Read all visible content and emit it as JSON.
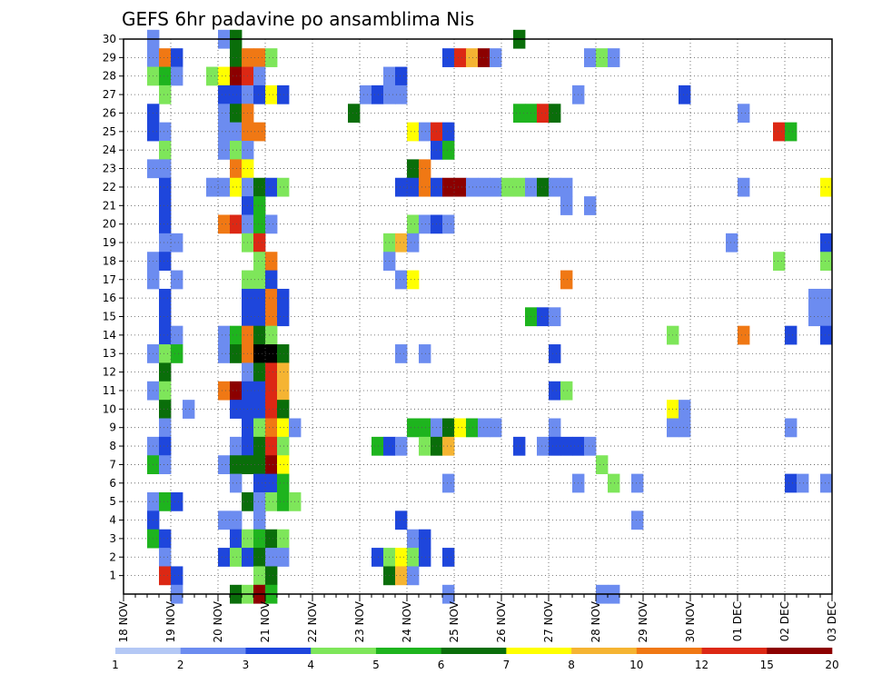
{
  "chart_data": {
    "type": "heatmap",
    "title": "GEFS 6hr padavine po ansamblima Nis",
    "xlabel": "",
    "ylabel": "",
    "x_tick_labels": [
      "18 NOV",
      "19 NOV",
      "20 NOV",
      "21 NOV",
      "22 NOV",
      "23 NOV",
      "24 NOV",
      "25 NOV",
      "26 NOV",
      "27 NOV",
      "28 NOV",
      "29 NOV",
      "30 NOV",
      "01 DEC",
      "02 DEC",
      "03 DEC"
    ],
    "y_tick_labels": [
      "1",
      "2",
      "3",
      "4",
      "5",
      "6",
      "7",
      "8",
      "9",
      "10",
      "11",
      "12",
      "13",
      "14",
      "15",
      "16",
      "17",
      "18",
      "19",
      "20",
      "21",
      "22",
      "23",
      "24",
      "25",
      "26",
      "27",
      "28",
      "29",
      "30"
    ],
    "y_range": [
      0,
      30
    ],
    "x_steps_per_day": 4,
    "x_steps_total": 60,
    "grid": true,
    "colorbar": {
      "labels": [
        "1",
        "2",
        "3",
        "4",
        "5",
        "6",
        "7",
        "8",
        "10",
        "12",
        "15",
        "20"
      ],
      "colors": [
        "#b4c8f5",
        "#6c8cf0",
        "#1e46dc",
        "#7ee65a",
        "#1eb41e",
        "#0a6e0a",
        "#ffff00",
        "#f5b432",
        "#f07814",
        "#dc2814",
        "#8c0000"
      ]
    },
    "cells": [
      [
        30,
        2,
        1
      ],
      [
        30,
        8,
        1
      ],
      [
        30,
        9,
        5
      ],
      [
        30,
        33,
        5
      ],
      [
        29,
        2,
        1
      ],
      [
        29,
        3,
        8
      ],
      [
        29,
        4,
        2
      ],
      [
        29,
        9,
        5
      ],
      [
        29,
        10,
        8
      ],
      [
        29,
        11,
        8
      ],
      [
        29,
        12,
        3
      ],
      [
        29,
        27,
        2
      ],
      [
        29,
        28,
        9
      ],
      [
        29,
        29,
        7
      ],
      [
        29,
        30,
        10
      ],
      [
        29,
        31,
        1
      ],
      [
        29,
        39,
        1
      ],
      [
        29,
        40,
        3
      ],
      [
        29,
        41,
        1
      ],
      [
        28,
        2,
        3
      ],
      [
        28,
        3,
        4
      ],
      [
        28,
        4,
        1
      ],
      [
        28,
        7,
        3
      ],
      [
        28,
        8,
        6
      ],
      [
        28,
        9,
        10
      ],
      [
        28,
        10,
        9
      ],
      [
        28,
        11,
        1
      ],
      [
        28,
        22,
        1
      ],
      [
        28,
        23,
        2
      ],
      [
        27,
        3,
        3
      ],
      [
        27,
        8,
        2
      ],
      [
        27,
        9,
        2
      ],
      [
        27,
        10,
        1
      ],
      [
        27,
        11,
        2
      ],
      [
        27,
        12,
        6
      ],
      [
        27,
        13,
        2
      ],
      [
        27,
        20,
        1
      ],
      [
        27,
        21,
        2
      ],
      [
        27,
        22,
        1
      ],
      [
        27,
        23,
        1
      ],
      [
        27,
        38,
        1
      ],
      [
        27,
        47,
        2
      ],
      [
        26,
        2,
        2
      ],
      [
        26,
        8,
        1
      ],
      [
        26,
        9,
        5
      ],
      [
        26,
        10,
        8
      ],
      [
        26,
        19,
        5
      ],
      [
        26,
        33,
        4
      ],
      [
        26,
        34,
        4
      ],
      [
        26,
        35,
        9
      ],
      [
        26,
        36,
        5
      ],
      [
        26,
        52,
        1
      ],
      [
        25,
        2,
        2
      ],
      [
        25,
        3,
        1
      ],
      [
        25,
        8,
        1
      ],
      [
        25,
        9,
        1
      ],
      [
        25,
        10,
        8
      ],
      [
        25,
        11,
        8
      ],
      [
        25,
        24,
        6
      ],
      [
        25,
        25,
        1
      ],
      [
        25,
        26,
        9
      ],
      [
        25,
        27,
        2
      ],
      [
        25,
        55,
        9
      ],
      [
        25,
        56,
        4
      ],
      [
        24,
        3,
        3
      ],
      [
        24,
        8,
        1
      ],
      [
        24,
        9,
        3
      ],
      [
        24,
        10,
        1
      ],
      [
        24,
        26,
        2
      ],
      [
        24,
        27,
        4
      ],
      [
        23,
        2,
        1
      ],
      [
        23,
        3,
        1
      ],
      [
        23,
        9,
        8
      ],
      [
        23,
        10,
        6
      ],
      [
        23,
        24,
        5
      ],
      [
        23,
        25,
        8
      ],
      [
        22,
        3,
        2
      ],
      [
        22,
        7,
        1
      ],
      [
        22,
        8,
        1
      ],
      [
        22,
        9,
        6
      ],
      [
        22,
        10,
        1
      ],
      [
        22,
        11,
        5
      ],
      [
        22,
        12,
        2
      ],
      [
        22,
        13,
        3
      ],
      [
        22,
        23,
        2
      ],
      [
        22,
        24,
        2
      ],
      [
        22,
        25,
        8
      ],
      [
        22,
        26,
        2
      ],
      [
        22,
        27,
        10
      ],
      [
        22,
        28,
        10
      ],
      [
        22,
        29,
        1
      ],
      [
        22,
        30,
        1
      ],
      [
        22,
        31,
        1
      ],
      [
        22,
        32,
        3
      ],
      [
        22,
        33,
        3
      ],
      [
        22,
        34,
        1
      ],
      [
        22,
        35,
        5
      ],
      [
        22,
        36,
        1
      ],
      [
        22,
        37,
        1
      ],
      [
        22,
        52,
        1
      ],
      [
        22,
        59,
        6
      ],
      [
        21,
        3,
        2
      ],
      [
        21,
        10,
        2
      ],
      [
        21,
        11,
        4
      ],
      [
        21,
        37,
        1
      ],
      [
        21,
        39,
        1
      ],
      [
        20,
        3,
        2
      ],
      [
        20,
        8,
        8
      ],
      [
        20,
        9,
        9
      ],
      [
        20,
        10,
        1
      ],
      [
        20,
        11,
        4
      ],
      [
        20,
        12,
        1
      ],
      [
        20,
        24,
        3
      ],
      [
        20,
        25,
        1
      ],
      [
        20,
        26,
        2
      ],
      [
        20,
        27,
        1
      ],
      [
        19,
        3,
        1
      ],
      [
        19,
        4,
        1
      ],
      [
        19,
        10,
        3
      ],
      [
        19,
        11,
        9
      ],
      [
        19,
        22,
        3
      ],
      [
        19,
        23,
        7
      ],
      [
        19,
        24,
        1
      ],
      [
        19,
        51,
        1
      ],
      [
        19,
        59,
        2
      ],
      [
        18,
        2,
        1
      ],
      [
        18,
        3,
        2
      ],
      [
        18,
        11,
        3
      ],
      [
        18,
        12,
        8
      ],
      [
        18,
        22,
        1
      ],
      [
        18,
        55,
        3
      ],
      [
        18,
        59,
        3
      ],
      [
        17,
        2,
        1
      ],
      [
        17,
        4,
        1
      ],
      [
        17,
        10,
        3
      ],
      [
        17,
        11,
        3
      ],
      [
        17,
        12,
        2
      ],
      [
        17,
        23,
        1
      ],
      [
        17,
        24,
        6
      ],
      [
        17,
        37,
        8
      ],
      [
        16,
        3,
        2
      ],
      [
        16,
        10,
        2
      ],
      [
        16,
        11,
        2
      ],
      [
        16,
        12,
        8
      ],
      [
        16,
        13,
        2
      ],
      [
        16,
        58,
        1
      ],
      [
        16,
        59,
        1
      ],
      [
        15,
        3,
        2
      ],
      [
        15,
        10,
        2
      ],
      [
        15,
        11,
        2
      ],
      [
        15,
        12,
        8
      ],
      [
        15,
        13,
        2
      ],
      [
        15,
        34,
        4
      ],
      [
        15,
        35,
        2
      ],
      [
        15,
        36,
        1
      ],
      [
        15,
        58,
        1
      ],
      [
        15,
        59,
        1
      ],
      [
        14,
        3,
        2
      ],
      [
        14,
        4,
        1
      ],
      [
        14,
        8,
        1
      ],
      [
        14,
        9,
        4
      ],
      [
        14,
        10,
        8
      ],
      [
        14,
        11,
        5
      ],
      [
        14,
        12,
        3
      ],
      [
        14,
        46,
        3
      ],
      [
        14,
        52,
        8
      ],
      [
        14,
        56,
        2
      ],
      [
        14,
        59,
        2
      ],
      [
        13,
        2,
        1
      ],
      [
        13,
        3,
        3
      ],
      [
        13,
        4,
        4
      ],
      [
        13,
        8,
        1
      ],
      [
        13,
        9,
        5
      ],
      [
        13,
        10,
        8
      ],
      [
        13,
        11,
        11
      ],
      [
        13,
        12,
        11
      ],
      [
        13,
        13,
        5
      ],
      [
        13,
        23,
        1
      ],
      [
        13,
        25,
        1
      ],
      [
        13,
        36,
        2
      ],
      [
        12,
        3,
        5
      ],
      [
        12,
        10,
        1
      ],
      [
        12,
        11,
        5
      ],
      [
        12,
        12,
        9
      ],
      [
        12,
        13,
        7
      ],
      [
        11,
        2,
        1
      ],
      [
        11,
        3,
        3
      ],
      [
        11,
        8,
        8
      ],
      [
        11,
        9,
        10
      ],
      [
        11,
        10,
        2
      ],
      [
        11,
        11,
        2
      ],
      [
        11,
        12,
        9
      ],
      [
        11,
        13,
        7
      ],
      [
        11,
        36,
        2
      ],
      [
        11,
        37,
        3
      ],
      [
        10,
        3,
        5
      ],
      [
        10,
        5,
        1
      ],
      [
        10,
        9,
        2
      ],
      [
        10,
        10,
        2
      ],
      [
        10,
        11,
        2
      ],
      [
        10,
        12,
        9
      ],
      [
        10,
        13,
        5
      ],
      [
        10,
        46,
        6
      ],
      [
        10,
        47,
        1
      ],
      [
        9,
        3,
        1
      ],
      [
        9,
        10,
        2
      ],
      [
        9,
        11,
        3
      ],
      [
        9,
        12,
        8
      ],
      [
        9,
        13,
        6
      ],
      [
        9,
        14,
        1
      ],
      [
        9,
        24,
        4
      ],
      [
        9,
        25,
        4
      ],
      [
        9,
        26,
        1
      ],
      [
        9,
        27,
        5
      ],
      [
        9,
        28,
        6
      ],
      [
        9,
        29,
        4
      ],
      [
        9,
        30,
        1
      ],
      [
        9,
        31,
        1
      ],
      [
        9,
        36,
        1
      ],
      [
        9,
        46,
        1
      ],
      [
        9,
        47,
        1
      ],
      [
        9,
        56,
        1
      ],
      [
        8,
        2,
        1
      ],
      [
        8,
        3,
        2
      ],
      [
        8,
        9,
        1
      ],
      [
        8,
        10,
        2
      ],
      [
        8,
        11,
        5
      ],
      [
        8,
        12,
        9
      ],
      [
        8,
        13,
        3
      ],
      [
        8,
        21,
        4
      ],
      [
        8,
        22,
        2
      ],
      [
        8,
        23,
        1
      ],
      [
        8,
        25,
        3
      ],
      [
        8,
        26,
        5
      ],
      [
        8,
        27,
        7
      ],
      [
        8,
        33,
        2
      ],
      [
        8,
        35,
        1
      ],
      [
        8,
        36,
        2
      ],
      [
        8,
        37,
        2
      ],
      [
        8,
        38,
        2
      ],
      [
        8,
        39,
        1
      ],
      [
        7,
        2,
        4
      ],
      [
        7,
        3,
        1
      ],
      [
        7,
        8,
        1
      ],
      [
        7,
        9,
        5
      ],
      [
        7,
        10,
        5
      ],
      [
        7,
        11,
        5
      ],
      [
        7,
        12,
        10
      ],
      [
        7,
        13,
        6
      ],
      [
        7,
        40,
        3
      ],
      [
        6,
        9,
        1
      ],
      [
        6,
        11,
        2
      ],
      [
        6,
        12,
        2
      ],
      [
        6,
        13,
        4
      ],
      [
        6,
        27,
        1
      ],
      [
        6,
        38,
        1
      ],
      [
        6,
        41,
        3
      ],
      [
        6,
        43,
        1
      ],
      [
        6,
        56,
        2
      ],
      [
        6,
        57,
        1
      ],
      [
        6,
        59,
        1
      ],
      [
        5,
        2,
        1
      ],
      [
        5,
        3,
        4
      ],
      [
        5,
        4,
        2
      ],
      [
        5,
        10,
        5
      ],
      [
        5,
        11,
        1
      ],
      [
        5,
        12,
        3
      ],
      [
        5,
        13,
        4
      ],
      [
        5,
        14,
        3
      ],
      [
        4,
        2,
        2
      ],
      [
        4,
        8,
        1
      ],
      [
        4,
        9,
        1
      ],
      [
        4,
        11,
        1
      ],
      [
        4,
        23,
        2
      ],
      [
        4,
        43,
        1
      ],
      [
        3,
        2,
        4
      ],
      [
        3,
        3,
        2
      ],
      [
        3,
        9,
        2
      ],
      [
        3,
        10,
        3
      ],
      [
        3,
        11,
        4
      ],
      [
        3,
        12,
        5
      ],
      [
        3,
        13,
        3
      ],
      [
        3,
        24,
        1
      ],
      [
        3,
        25,
        2
      ],
      [
        2,
        3,
        1
      ],
      [
        2,
        8,
        2
      ],
      [
        2,
        9,
        3
      ],
      [
        2,
        10,
        2
      ],
      [
        2,
        11,
        5
      ],
      [
        2,
        12,
        1
      ],
      [
        2,
        13,
        1
      ],
      [
        2,
        21,
        2
      ],
      [
        2,
        22,
        3
      ],
      [
        2,
        23,
        6
      ],
      [
        2,
        24,
        3
      ],
      [
        2,
        25,
        2
      ],
      [
        2,
        27,
        2
      ],
      [
        1,
        3,
        9
      ],
      [
        1,
        4,
        2
      ],
      [
        1,
        11,
        3
      ],
      [
        1,
        12,
        5
      ],
      [
        1,
        22,
        5
      ],
      [
        1,
        23,
        7
      ],
      [
        1,
        24,
        1
      ],
      [
        0,
        4,
        1
      ],
      [
        0,
        9,
        5
      ],
      [
        0,
        10,
        3
      ],
      [
        0,
        11,
        10
      ],
      [
        0,
        12,
        4
      ],
      [
        0,
        27,
        1
      ],
      [
        0,
        40,
        1
      ],
      [
        0,
        41,
        1
      ]
    ]
  }
}
